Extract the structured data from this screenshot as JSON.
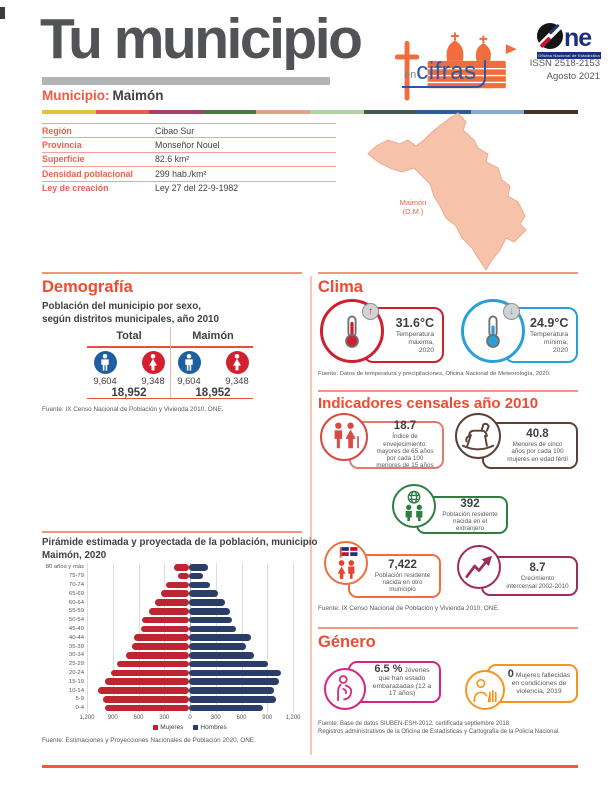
{
  "header": {
    "title": "Tu municipio",
    "tagline_en": "en",
    "tagline_cifras": "cifras",
    "municipio_label": "Municipio:",
    "municipio_name": "Maimón",
    "one_text": "ne",
    "one_tagline": "Oficina Nacional de Estadística",
    "issn": "ISSN 2518-2153",
    "date": "Agosto 2021",
    "stripe_colors": [
      "#e3c13e",
      "#e55c4a",
      "#a43e6b",
      "#47773e",
      "#e2a18b",
      "#b2d3a4",
      "#465a4d",
      "#2a5c9c",
      "#86abd1",
      "#473327"
    ]
  },
  "info_table": {
    "rows": [
      {
        "label": "Región",
        "value": "Cibao Sur"
      },
      {
        "label": "Provincia",
        "value": "Monseñor Nouel"
      },
      {
        "label": "Superficie",
        "value": "82.6 km²"
      },
      {
        "label": "Densidad poblacional",
        "value": "299 hab./km²"
      },
      {
        "label": "Ley de creación",
        "value": "Ley 27 del 22-9-1982"
      }
    ]
  },
  "map": {
    "label": "Maimón\n(D.M.)"
  },
  "demografia": {
    "title": "Demografía",
    "subtitle": "Población del municipio por sexo,\nsegún distritos municipales, año 2010",
    "groups": [
      {
        "header": "Total",
        "male": "9,604",
        "female": "9,348",
        "total": "18,952"
      },
      {
        "header": "Maimón",
        "male": "9,604",
        "female": "9,348",
        "total": "18,952"
      }
    ],
    "fuente": "Fuente: IX Censo Nacional de Población y Vivienda 2010, ONE."
  },
  "clima": {
    "title": "Clima",
    "cards": [
      {
        "value": "31.6°C",
        "label": "Temperatura\nmáxima,\n2020",
        "color": "#cf2030",
        "arrow": "↑"
      },
      {
        "value": "24.9°C",
        "label": "Temperatura\nmínima,\n2020",
        "color": "#2ba0d8",
        "arrow": "↓"
      }
    ],
    "fuente": "Fuente: Datos de temperatura y precipitaciones, Oficina Nacional de Meteorología, 2020."
  },
  "indicadores": {
    "title": "Indicadores censales año 2010",
    "cards": [
      {
        "value": "18.7",
        "label": "Índice de envejecimiento: mayores de 65 años por cada 100 menores de 15 años",
        "color": "#d84b44"
      },
      {
        "value": "40.8",
        "label": "Menores de cinco años por cada 100 mujeres en edad fértil",
        "color": "#5d4037"
      },
      {
        "value": "392",
        "label": "Población residente nacida en el extranjero",
        "color": "#2e7d43"
      },
      {
        "value": "7,422",
        "label": "Población residente nacida en otro municipio",
        "color": "#f26d3d"
      },
      {
        "value": "8.7",
        "label": "Crecimiento intercensal 2002-2010",
        "color": "#a02a5a"
      }
    ],
    "fuente": "Fuente: IX Censo Nacional de Población y Vivienda 2010, ONE."
  },
  "genero": {
    "title": "Género",
    "cards": [
      {
        "value": "6.5 %",
        "label": "Jóvenes que han estado embarazadas (12 a 17 años)",
        "color": "#d6247f"
      },
      {
        "value": "0",
        "label": "Mujeres fallecidas en condiciones de violencia, 2019",
        "color": "#f7941e"
      }
    ],
    "fuente_line1": "Fuente: Base de datos SIUBEN-ESH-2012, certificada septiembre 2018.",
    "fuente_line2": "Registros administrativos de la Oficina de Estadísticas y Cartografía de la Policía Nacional."
  },
  "piramide": {
    "title": "Pirámide estimada y proyectada de la población, municipio\nMaimón, 2020",
    "fuente": "Fuente: Estimaciones y Proyecciones Nacionales de Población 2020, ONE."
  },
  "chart_data": {
    "type": "bar",
    "subtype": "population-pyramid",
    "title": "Pirámide estimada y proyectada de la población, municipio Maimón, 2020",
    "categories": [
      "0-4",
      "5-9",
      "10-14",
      "15-19",
      "20-24",
      "25-29",
      "30-34",
      "35-39",
      "40-44",
      "45-49",
      "50-54",
      "55-59",
      "60-64",
      "65-69",
      "70-74",
      "75-79",
      "80 años y más"
    ],
    "series": [
      {
        "name": "Mujeres",
        "color": "#bf2430",
        "values": [
          980,
          1000,
          1060,
          980,
          905,
          845,
          730,
          670,
          640,
          555,
          545,
          465,
          395,
          330,
          265,
          130,
          175
        ]
      },
      {
        "name": "Hombres",
        "color": "#2a3e68",
        "values": [
          865,
          1010,
          990,
          1050,
          1070,
          915,
          755,
          660,
          720,
          545,
          505,
          480,
          420,
          340,
          245,
          165,
          215
        ]
      }
    ],
    "xlim": [
      -1200,
      1200
    ],
    "x_ticks": [
      "1,200",
      "900",
      "600",
      "300",
      "0",
      "300",
      "600",
      "900",
      "1,200"
    ],
    "grid": true,
    "legend_position": "bottom"
  },
  "colors": {
    "accent": "#ee4b31",
    "male": "#1d5fa0",
    "female": "#d41f2e",
    "map_fill": "#f6c2aa",
    "bottom_rule": "#f15b2e"
  }
}
